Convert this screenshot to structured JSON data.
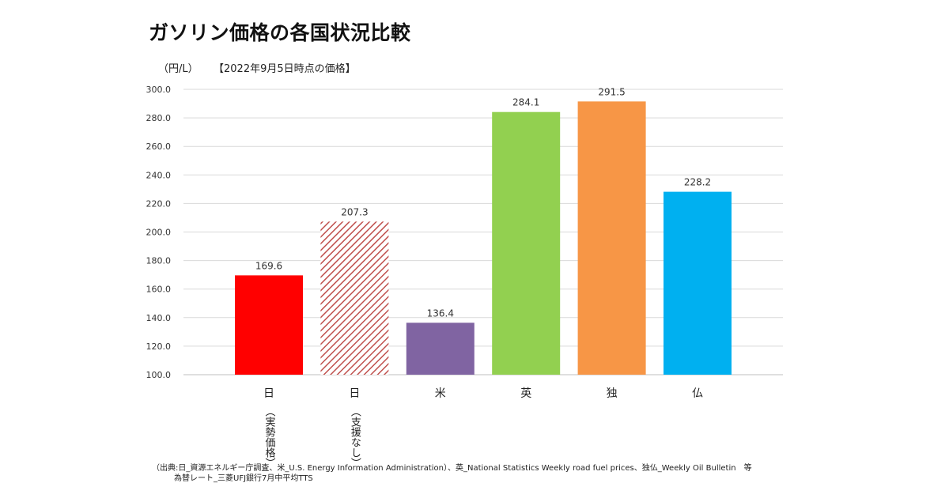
{
  "header": {
    "title": "ガソリン価格の各国状況比較",
    "unit": "（円/L）",
    "as_of_note": "【2022年9月5日時点の価格】"
  },
  "chart_data": {
    "type": "bar",
    "title": "ガソリン価格の各国状況比較",
    "xlabel": "",
    "ylabel": "（円/L）",
    "ylim": [
      100,
      300
    ],
    "yticks": [
      "100.0",
      "120.0",
      "140.0",
      "160.0",
      "180.0",
      "200.0",
      "220.0",
      "240.0",
      "260.0",
      "280.0",
      "300.0"
    ],
    "grid": true,
    "categories": [
      "日",
      "日",
      "米",
      "英",
      "独",
      "仏"
    ],
    "category_sublabels": [
      "（実勢価格）",
      "（支援なし）",
      "",
      "",
      "",
      ""
    ],
    "values": [
      169.6,
      207.3,
      136.4,
      284.1,
      291.5,
      228.2
    ],
    "value_labels": [
      "169.6",
      "207.3",
      "136.4",
      "284.1",
      "291.5",
      "228.2"
    ],
    "colors": [
      "#ff0000",
      "#c0504d",
      "#8064a2",
      "#92d050",
      "#f79646",
      "#00b0f0"
    ],
    "patterns": [
      "solid",
      "hatched",
      "solid",
      "solid",
      "solid",
      "solid"
    ]
  },
  "source": {
    "line1": "（出典:日_資源エネルギー庁調査、米_U.S. Energy Information Administration）、英_National Statistics Weekly road fuel prices、独仏_Weekly Oil Bulletin　等",
    "line2": "為替レート_三菱UFJ銀行7月中平均TTS"
  }
}
